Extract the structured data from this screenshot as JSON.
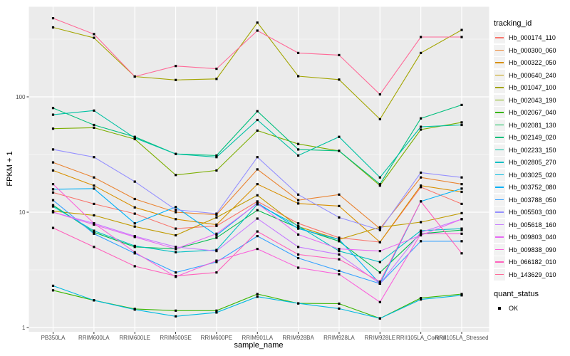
{
  "chart_data": {
    "type": "line",
    "title": "",
    "xlabel": "sample_name",
    "ylabel": "FPKM + 1",
    "y_scale": "log10",
    "ylim": [
      1,
      600
    ],
    "y_ticks": [
      100,
      10,
      1
    ],
    "y_tick_labels": [
      "100",
      "10",
      "1"
    ],
    "y_minor_breaks": [
      316.2,
      31.62,
      3.162
    ],
    "grid": "on",
    "panel_bg": "#EBEBEB",
    "grid_color": "#FFFFFF",
    "point_shape": "square",
    "point_color": "#000000",
    "legend_position": "right",
    "categories": [
      "PB350LA",
      "RRIM600LA",
      "RRIM600LE",
      "RRIM600SE",
      "RRIM600PE",
      "RRIM901LA",
      "RRIM928BA",
      "RRIM928LA",
      "RRIM928LE",
      "RRII105LA_Control",
      "RRII105LA_Stressed"
    ],
    "series": [
      {
        "name": "Hb_000174_110",
        "color": "#F8766D",
        "values": [
          14.8,
          11.8,
          9.7,
          7.2,
          7.6,
          12.4,
          8.0,
          6.0,
          5.5,
          16.5,
          11.8
        ]
      },
      {
        "name": "Hb_000300_060",
        "color": "#EA8331",
        "values": [
          27,
          20,
          13,
          10,
          9.5,
          23.5,
          12.7,
          14.2,
          7.2,
          20,
          17.5
        ]
      },
      {
        "name": "Hb_000322_050",
        "color": "#D89000",
        "values": [
          23,
          17,
          11,
          8.7,
          7.8,
          17.5,
          11.9,
          11.3,
          5.5,
          17,
          15
        ]
      },
      {
        "name": "Hb_000640_240",
        "color": "#C09B00",
        "values": [
          10.2,
          9.4,
          7.5,
          6.3,
          9.0,
          14,
          7.5,
          5.8,
          7.4,
          8.2,
          9.8
        ]
      },
      {
        "name": "Hb_001047_100",
        "color": "#A3A500",
        "values": [
          400,
          325,
          150,
          140,
          143,
          440,
          151,
          141,
          64,
          240,
          380
        ]
      },
      {
        "name": "Hb_002043_190",
        "color": "#7CAE00",
        "values": [
          53,
          54,
          43,
          21,
          23,
          51,
          39,
          34,
          17,
          52,
          60
        ]
      },
      {
        "name": "Hb_002067_040",
        "color": "#39B600",
        "values": [
          2.1,
          1.72,
          1.45,
          1.4,
          1.4,
          1.95,
          1.62,
          1.61,
          1.2,
          1.8,
          1.95
        ]
      },
      {
        "name": "Hb_002081_130",
        "color": "#00BB4E",
        "values": [
          11.5,
          6.7,
          5.0,
          4.8,
          6.0,
          10.4,
          7.3,
          5.6,
          3.0,
          6.5,
          7.0
        ]
      },
      {
        "name": "Hb_002149_020",
        "color": "#00BF7D",
        "values": [
          80,
          57,
          45,
          32,
          31,
          75,
          35,
          34,
          17.5,
          65,
          85
        ]
      },
      {
        "name": "Hb_002233_150",
        "color": "#00C1A3",
        "values": [
          70,
          76,
          44,
          32,
          30,
          63,
          31,
          45,
          20,
          55,
          57
        ]
      },
      {
        "name": "Hb_002805_270",
        "color": "#00BFC4",
        "values": [
          11.2,
          6.9,
          5.1,
          4.5,
          4.7,
          11.7,
          7.6,
          4.6,
          3.7,
          6.9,
          7.2
        ]
      },
      {
        "name": "Hb_003025_020",
        "color": "#00BAE0",
        "values": [
          2.3,
          1.72,
          1.43,
          1.25,
          1.35,
          1.85,
          1.62,
          1.46,
          1.2,
          1.75,
          1.9
        ]
      },
      {
        "name": "Hb_003752_080",
        "color": "#00B0F6",
        "values": [
          15.8,
          16.0,
          8.0,
          11.1,
          6.3,
          12.0,
          7.2,
          5.8,
          2.4,
          12.4,
          16.0
        ]
      },
      {
        "name": "Hb_003788_050",
        "color": "#35A2FF",
        "values": [
          12.7,
          6.5,
          4.4,
          3.0,
          3.7,
          6.2,
          4.0,
          3.1,
          2.4,
          5.6,
          5.6
        ]
      },
      {
        "name": "Hb_005503_030",
        "color": "#9590FF",
        "values": [
          35,
          30,
          18.4,
          10.5,
          9.7,
          30,
          14.2,
          9.0,
          7.0,
          22,
          20
        ]
      },
      {
        "name": "Hb_005618_160",
        "color": "#C77CFF",
        "values": [
          10.0,
          8.0,
          6.2,
          5.0,
          4.6,
          8.8,
          5.0,
          4.3,
          2.4,
          6.7,
          8.7
        ]
      },
      {
        "name": "Hb_009803_040",
        "color": "#E76BF3",
        "values": [
          10.0,
          7.8,
          6.1,
          4.8,
          6.5,
          11.9,
          6.4,
          4.8,
          4.6,
          6.3,
          8.7
        ]
      },
      {
        "name": "Hb_009838_090",
        "color": "#FA62DB",
        "values": [
          17.5,
          8.0,
          4.5,
          2.75,
          3.8,
          4.8,
          3.3,
          2.9,
          1.66,
          6.5,
          6.5
        ]
      },
      {
        "name": "Hb_066182_010",
        "color": "#FF62BC",
        "values": [
          7.3,
          5.0,
          3.4,
          2.8,
          3.0,
          6.8,
          4.3,
          3.9,
          2.5,
          12.4,
          4.4
        ]
      },
      {
        "name": "Hb_143629_010",
        "color": "#FF6A98",
        "values": [
          480,
          350,
          150,
          185,
          175,
          375,
          240,
          230,
          105,
          330,
          330
        ]
      }
    ]
  },
  "legend": {
    "tracking_title": "tracking_id",
    "quant_title": "quant_status",
    "quant_items": [
      {
        "label": "OK"
      }
    ]
  }
}
